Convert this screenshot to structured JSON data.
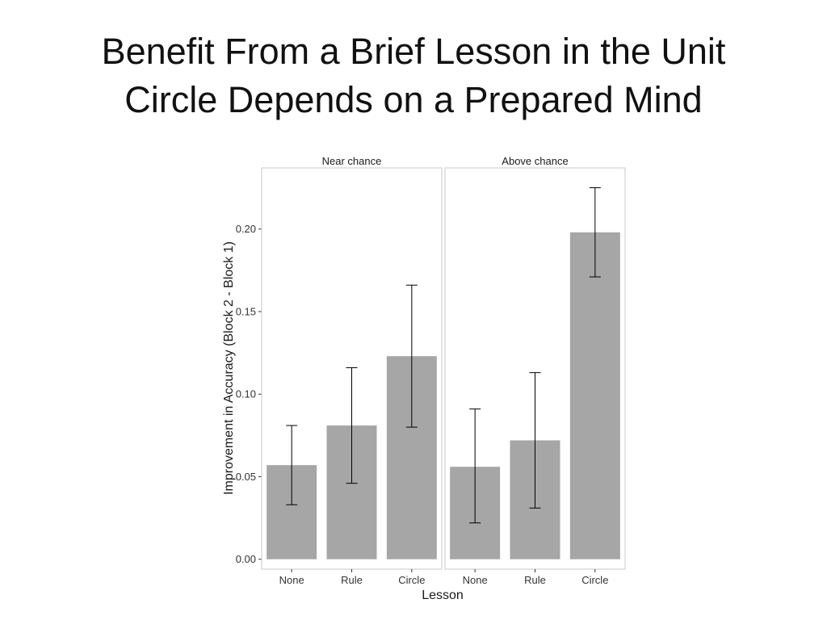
{
  "slide": {
    "title_line1": "Benefit From a Brief Lesson in the Unit",
    "title_line2": "Circle Depends on a Prepared Mind"
  },
  "chart_data": {
    "type": "bar",
    "facet_by": "strip",
    "facets": [
      {
        "label": "Near chance",
        "categories": [
          "None",
          "Rule",
          "Circle"
        ],
        "values": [
          0.057,
          0.081,
          0.123
        ],
        "error_low": [
          0.033,
          0.046,
          0.08
        ],
        "error_high": [
          0.081,
          0.116,
          0.166
        ]
      },
      {
        "label": "Above chance",
        "categories": [
          "None",
          "Rule",
          "Circle"
        ],
        "values": [
          0.056,
          0.072,
          0.198
        ],
        "error_low": [
          0.022,
          0.031,
          0.171
        ],
        "error_high": [
          0.091,
          0.113,
          0.225
        ]
      }
    ],
    "xlabel": "Lesson",
    "ylabel": "Improvement in Accuracy (Block 2 - Block 1)",
    "ylim": [
      -0.006,
      0.237
    ],
    "yticks": [
      0.0,
      0.05,
      0.1,
      0.15,
      0.2
    ],
    "ytick_labels": [
      "0.00",
      "0.05",
      "0.10",
      "0.15",
      "0.20"
    ],
    "grid": false,
    "legend": "none",
    "colors": {
      "bar": "#a6a6a6",
      "error_bar": "#000000",
      "panel_border": "#c8c8c8",
      "strip_text": "#1a1a1a",
      "axis_text": "#333333"
    }
  }
}
